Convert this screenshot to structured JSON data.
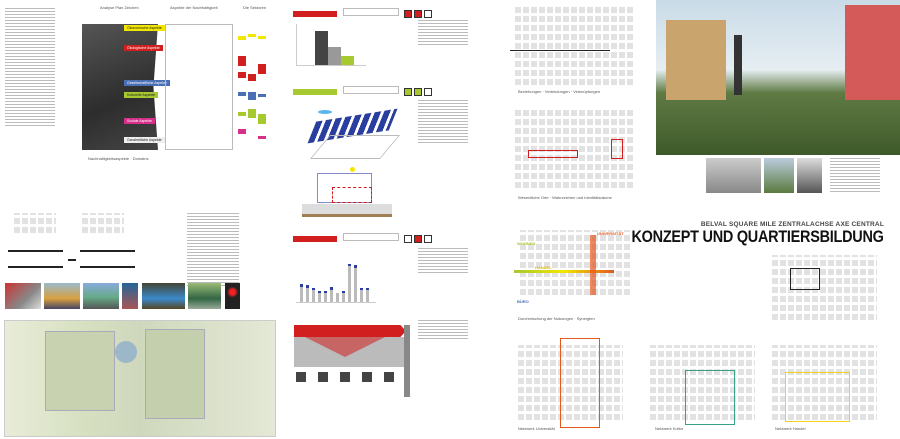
{
  "colors": {
    "red": "#d11f1f",
    "yellow": "#f3e600",
    "blue": "#4a6fb5",
    "green": "#a7c930",
    "magenta": "#d62f8c",
    "orange": "#e2581f",
    "teal": "#3aa187",
    "dark": "#3a3a3a"
  },
  "left": {
    "col_headers": [
      "Analyse Plan Zeichen",
      "Aspekte der Nachhaltigkeit",
      "Die Sektoren"
    ],
    "aspects": [
      "Ökonomische Aspekte",
      "Ökologische Aspekte",
      "Gesellschaftliche Aspekte",
      "Kulturelle Aspekte",
      "Soziale Aspekte",
      "Ganzheitliche Aspekte"
    ],
    "caption": "Nachhaltigkeitsaspekte · Domains"
  },
  "title": {
    "subtitle": "BELVAL SQUARE MILE ZENTRALACHSE AXE CENTRAL",
    "main": "KONZEPT UND QUARTIERSBILDUNG"
  },
  "diagrams": {
    "d1": "Beziehungen · Verbindungen · Verknüpfungen",
    "d2": "Wesentliche Orte · Wahrzeichen und Identitätsräume",
    "d3": "Durchmischung der Nutzungen · Synergien",
    "uses": {
      "wohnen": "WOHNEN",
      "handel": "HANDEL",
      "universitaet": "UNIVERSITÄT",
      "buero": "BÜRO"
    },
    "n1": "Netzwerk Universität",
    "n2": "Netzwerk Kultur",
    "n3": "Netzwerk Handel"
  },
  "icons": [
    "mountain-icon",
    "person-icon",
    "water-icon"
  ]
}
